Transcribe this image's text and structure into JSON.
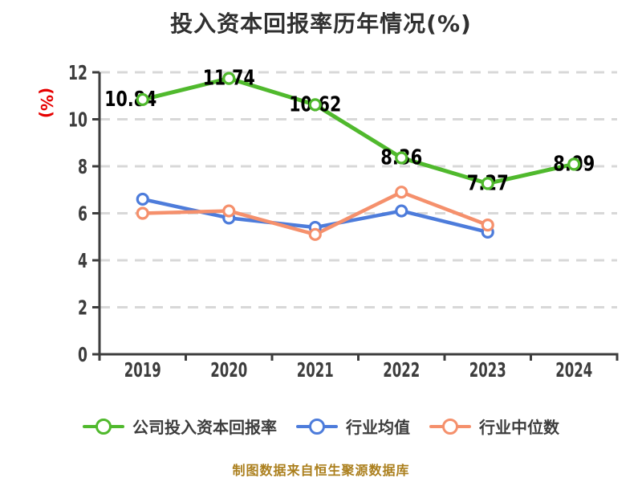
{
  "title": "投入资本回报率历年情况(%)",
  "footer_note": "制图数据来自恒生聚源数据库",
  "colors": {
    "title": "#303030",
    "axis": "#3d3d3d",
    "tick_label": "#3d3d3d",
    "grid": "#d8d8d8",
    "y_unit_label": "#e60000",
    "data_label": "#000000",
    "footer": "#ab7f1d",
    "marker_fill": "#ffffff"
  },
  "chart_data": {
    "type": "line",
    "title": "投入资本回报率历年情况(%)",
    "ylabel": "(%)",
    "xlabel": "",
    "categories": [
      "2019",
      "2020",
      "2021",
      "2022",
      "2023",
      "2024"
    ],
    "y_ticks": [
      0,
      2,
      4,
      6,
      8,
      10,
      12
    ],
    "ylim": [
      0,
      12
    ],
    "grid": "horizontal-dashed",
    "legend_position": "bottom",
    "series": [
      {
        "name": "公司投入资本回报率",
        "color": "#50b92d",
        "values": [
          10.84,
          11.74,
          10.62,
          8.36,
          7.27,
          8.09
        ],
        "data_labels": [
          "10.84",
          "11.74",
          "10.62",
          "8.36",
          "7.27",
          "8.09"
        ]
      },
      {
        "name": "行业均值",
        "color": "#4d7cdb",
        "values": [
          6.6,
          5.8,
          5.4,
          6.1,
          5.2,
          null
        ],
        "data_labels": null
      },
      {
        "name": "行业中位数",
        "color": "#f5906c",
        "values": [
          6.0,
          6.1,
          5.1,
          6.9,
          5.5,
          null
        ],
        "data_labels": null
      }
    ]
  }
}
